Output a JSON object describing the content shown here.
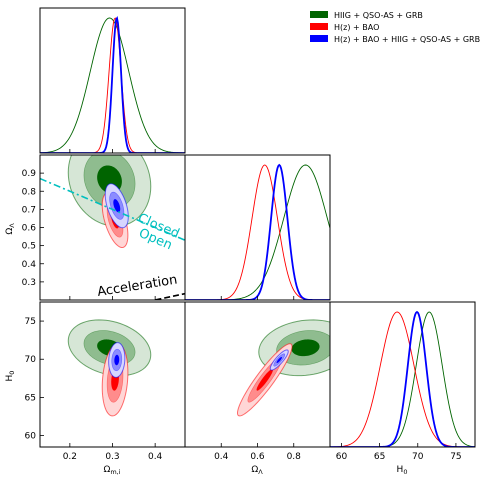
{
  "colors": {
    "green": "#006400",
    "red": "#ff0000",
    "blue": "#0000ff",
    "cyan": "#00bfbf",
    "green_fill": [
      "#d6e6d6",
      "#8fbc8f",
      "#006400"
    ],
    "red_fill": [
      "#ffd6d6",
      "#ff8c8c",
      "#ff0000"
    ],
    "blue_fill": [
      "#d6d6ff",
      "#8c8cff",
      "#0000ff"
    ]
  },
  "chart_data": {
    "type": "triangle",
    "parameters": [
      {
        "key": "om",
        "label": "Ω_m,i",
        "range": [
          0.13,
          0.47
        ],
        "ticks": [
          "0.2",
          "0.3",
          "0.4"
        ],
        "tick_values": [
          0.2,
          0.3,
          0.4
        ]
      },
      {
        "key": "ol",
        "label": "Ω_Λ",
        "range": [
          0.2,
          1.0
        ],
        "ticks": [
          "0.3",
          "0.4",
          "0.5",
          "0.6",
          "0.7",
          "0.8",
          "0.9"
        ],
        "tick_values": [
          0.3,
          0.4,
          0.5,
          0.6,
          0.7,
          0.8,
          0.9
        ],
        "x_ticks": [
          "0.4",
          "0.6",
          "0.8"
        ],
        "x_tick_values": [
          0.4,
          0.6,
          0.8
        ]
      },
      {
        "key": "h0",
        "label": "H_0",
        "range": [
          58.5,
          77.5
        ],
        "ticks": [
          "60",
          "65",
          "70",
          "75"
        ],
        "tick_values": [
          60,
          65,
          70,
          75
        ]
      }
    ],
    "series": [
      {
        "name": "HIIG + QSO-AS + GRB",
        "color": "green",
        "om": {
          "mean": 0.293,
          "sd": 0.045
        },
        "ol": {
          "mean": 0.865,
          "sd": 0.12
        },
        "h0": {
          "mean": 71.5,
          "sd": 1.7
        },
        "corr": {
          "om_ol": -0.15,
          "om_h0": -0.25,
          "ol_h0": 0.15
        },
        "scale": {
          "om_ol": 2.15,
          "om_h0": 2.15,
          "ol_h0": 2.15
        },
        "style": "filled"
      },
      {
        "name": "H(z) + BAO",
        "color": "red",
        "om": {
          "mean": 0.306,
          "sd": 0.014
        },
        "ol": {
          "mean": 0.64,
          "sd": 0.07
        },
        "h0": {
          "mean": 67.3,
          "sd": 2.2
        },
        "corr": {
          "om_ol": -0.55,
          "om_h0": 0.2,
          "ol_h0": 0.92
        },
        "scale": {
          "om_ol": 2.15,
          "om_h0": 2.15,
          "ol_h0": 2.15
        },
        "style": "filled"
      },
      {
        "name": "H(z) + BAO + HIIG + QSO-AS + GRB",
        "color": "blue",
        "om": {
          "mean": 0.31,
          "sd": 0.01
        },
        "ol": {
          "mean": 0.72,
          "sd": 0.045
        },
        "h0": {
          "mean": 69.9,
          "sd": 1.2
        },
        "corr": {
          "om_ol": -0.5,
          "om_h0": 0.1,
          "ol_h0": 0.85
        },
        "scale": {
          "om_ol": 2.7,
          "om_h0": 1.9,
          "ol_h0": 1.1
        },
        "style": "filled"
      }
    ],
    "annotations": {
      "closed": "Closed",
      "open": "Open",
      "acceleration": "Acceleration"
    },
    "flat_line": {
      "om": [
        0.13,
        0.47
      ],
      "ol": [
        0.87,
        0.53
      ]
    },
    "accel_line": {
      "om": [
        0.38,
        0.47
      ],
      "ol": [
        0.19,
        0.235
      ]
    }
  }
}
